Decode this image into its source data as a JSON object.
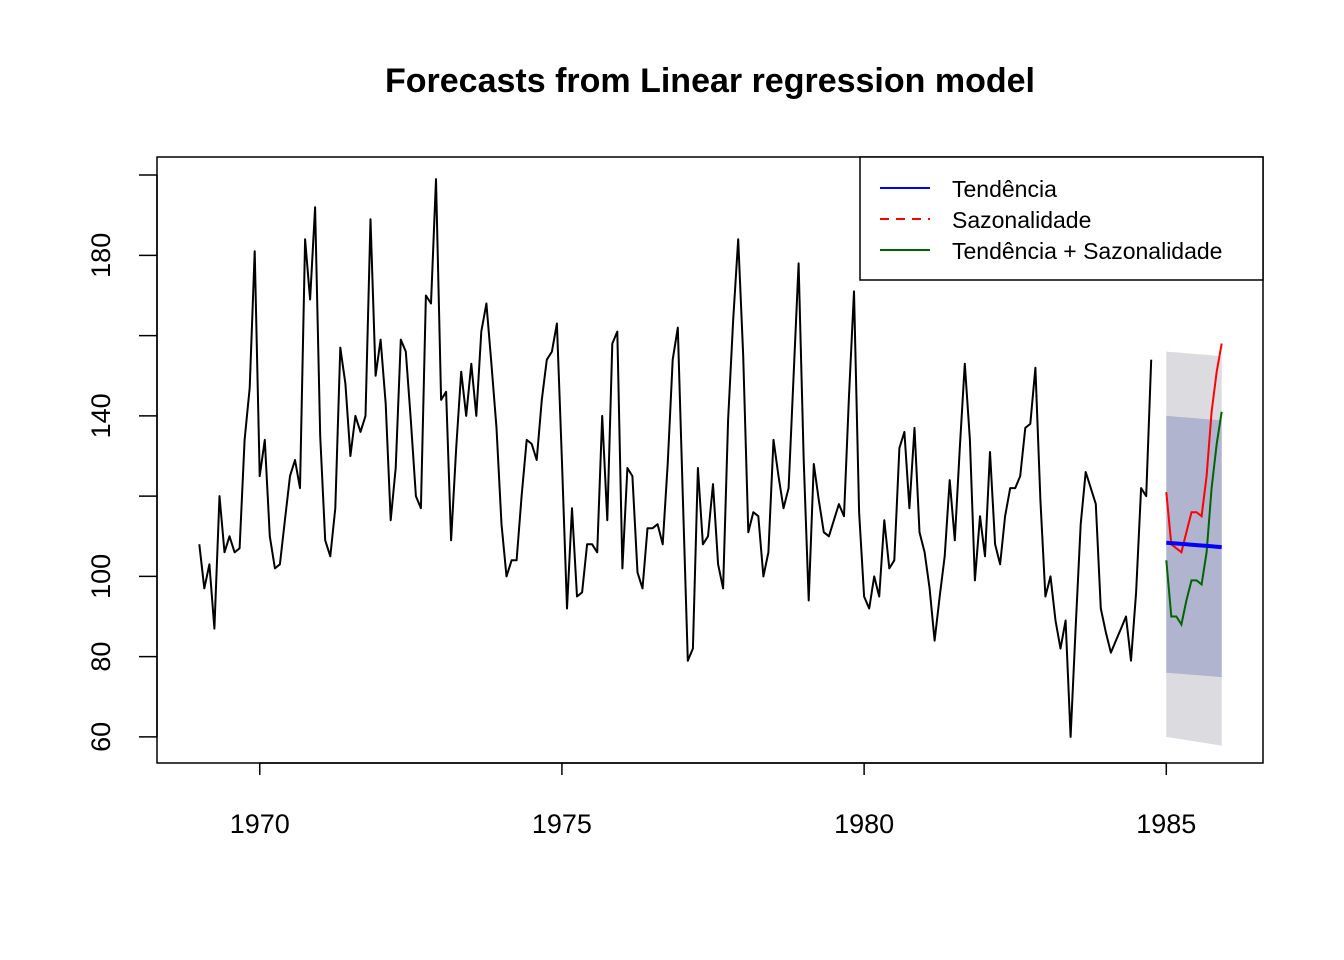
{
  "chart_data": {
    "type": "line",
    "title": "Forecasts from Linear regression model",
    "xlabel": "",
    "ylabel": "",
    "xlim": [
      1968.3,
      1986.6
    ],
    "ylim": [
      53.5,
      204.5
    ],
    "x_ticks": [
      {
        "value": 1970,
        "label": "1970"
      },
      {
        "value": 1975,
        "label": "1975"
      },
      {
        "value": 1980,
        "label": "1980"
      },
      {
        "value": 1985,
        "label": "1985"
      }
    ],
    "y_ticks": [
      {
        "value": 60,
        "label": "60"
      },
      {
        "value": 80,
        "label": "80"
      },
      {
        "value": 100,
        "label": "100"
      },
      {
        "value": 140,
        "label": "140"
      },
      {
        "value": 180,
        "label": "180"
      }
    ],
    "y_minor_ticks": [
      120,
      160,
      200
    ],
    "grid": false,
    "legend_position": "top-right",
    "colors": {
      "history": "#000000",
      "trend": "#0000ff",
      "seasonal": "#ff0000",
      "trend_seasonal": "#006400",
      "band95": "#dcdce0",
      "band80": "#b0b4ce"
    },
    "history": {
      "start": 1969.0,
      "step": 0.08333333,
      "values": [
        108,
        97,
        103,
        87,
        120,
        106,
        110,
        106,
        107,
        134,
        147,
        181,
        125,
        134,
        110,
        102,
        103,
        114,
        125,
        129,
        122,
        184,
        169,
        192,
        135,
        109,
        105,
        117,
        157,
        148,
        130,
        140,
        136,
        140,
        189,
        150,
        159,
        143,
        114,
        127,
        159,
        156,
        139,
        120,
        117,
        170,
        168,
        199,
        144,
        146,
        109,
        132,
        151,
        140,
        153,
        140,
        161,
        168,
        153,
        137,
        113,
        100,
        104,
        104,
        120,
        134,
        133,
        129,
        144,
        154,
        156,
        163,
        129,
        92,
        117,
        95,
        96,
        108,
        108,
        106,
        140,
        114,
        158,
        161,
        102,
        127,
        125,
        101,
        97,
        112,
        112,
        113,
        108,
        128,
        154,
        162,
        120,
        79,
        82,
        127,
        108,
        110,
        123,
        103,
        97,
        139,
        164,
        184,
        155,
        111,
        116,
        115,
        100,
        106,
        134,
        125,
        117,
        122,
        150,
        178,
        129,
        94,
        128,
        119,
        111,
        110,
        114,
        118,
        115,
        145,
        171,
        116,
        95,
        92,
        100,
        95,
        114,
        102,
        104,
        132,
        136,
        117,
        137,
        111,
        106,
        97,
        84,
        95,
        105,
        124,
        109,
        132,
        153,
        134,
        99,
        115,
        105,
        131,
        108,
        103,
        115,
        122,
        122,
        125,
        137,
        138,
        152,
        119,
        95,
        100,
        89,
        82,
        89,
        60,
        87,
        113,
        126,
        122,
        118,
        92,
        86,
        81,
        84,
        87,
        90,
        79,
        96,
        122,
        120,
        154
      ]
    },
    "forecast": {
      "start": 1985.0,
      "step": 0.08333333,
      "trend": [
        108.4,
        108.3,
        108.2,
        108.1,
        108.0,
        107.9,
        107.8,
        107.7,
        107.6,
        107.5,
        107.4,
        107.3
      ],
      "seasonal": [
        121,
        108,
        107,
        106,
        111,
        116,
        116,
        115,
        125,
        141,
        151,
        158
      ],
      "trend_seasonal": [
        104,
        90,
        90,
        88,
        94,
        99,
        99,
        98,
        106,
        122,
        133,
        141
      ],
      "lower95": [
        60,
        59.8,
        59.6,
        59.4,
        59.2,
        59,
        58.8,
        58.6,
        58.4,
        58.2,
        58,
        57.8
      ],
      "upper95": [
        156,
        155.9,
        155.8,
        155.7,
        155.6,
        155.5,
        155.4,
        155.3,
        155.2,
        155.1,
        155,
        154.9
      ],
      "lower80": [
        76,
        75.9,
        75.8,
        75.7,
        75.6,
        75.5,
        75.4,
        75.3,
        75.2,
        75.1,
        75,
        74.9
      ],
      "upper80": [
        140,
        139.9,
        139.8,
        139.7,
        139.6,
        139.5,
        139.4,
        139.3,
        139.2,
        139.1,
        139,
        138.9
      ]
    },
    "legend": [
      {
        "label": "Tendência",
        "color": "#0000ff",
        "dash": false
      },
      {
        "label": "Sazonalidade",
        "color": "#ff0000",
        "dash": true
      },
      {
        "label": "Tendência + Sazonalidade",
        "color": "#006400",
        "dash": false
      }
    ]
  }
}
